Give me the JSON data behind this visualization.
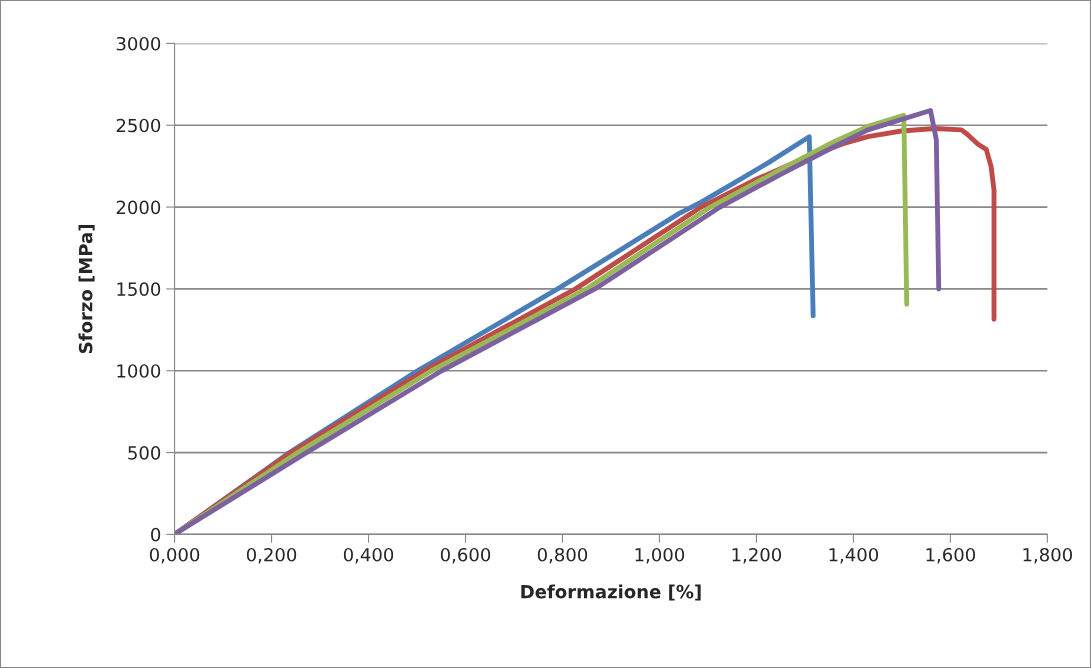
{
  "chart_data": {
    "type": "line",
    "xlabel": "Deformazione [%]",
    "ylabel": "Sforzo [MPa]",
    "xlim": [
      0,
      1.8
    ],
    "ylim": [
      0,
      3000
    ],
    "xticks": [
      {
        "value": 0,
        "label": "0,000"
      },
      {
        "value": 0.2,
        "label": "0,200"
      },
      {
        "value": 0.4,
        "label": "0,400"
      },
      {
        "value": 0.6,
        "label": "0,600"
      },
      {
        "value": 0.8,
        "label": "0,800"
      },
      {
        "value": 1.0,
        "label": "1,000"
      },
      {
        "value": 1.2,
        "label": "1,200"
      },
      {
        "value": 1.4,
        "label": "1,400"
      },
      {
        "value": 1.6,
        "label": "1,600"
      },
      {
        "value": 1.8,
        "label": "1,800"
      }
    ],
    "yticks": [
      0,
      500,
      1000,
      1500,
      2000,
      2500,
      3000
    ],
    "grid": "y",
    "legend": false,
    "marker": "none",
    "line_style": "solid",
    "series": [
      {
        "color": "#4a7ebb",
        "x": [
          0.005,
          0.237,
          0.501,
          0.79,
          1.04,
          1.086,
          1.155,
          1.224,
          1.309,
          1.317
        ],
        "values": [
          10,
          500,
          1000,
          1500,
          1960,
          2030,
          2150,
          2270,
          2430,
          1335
        ]
      },
      {
        "color": "#be4b48",
        "x": [
          0.005,
          0.24,
          0.515,
          0.827,
          1.086,
          1.2,
          1.3,
          1.382,
          1.43,
          1.499,
          1.568,
          1.623,
          1.636,
          1.657,
          1.674,
          1.684,
          1.69,
          1.69
        ],
        "values": [
          10,
          500,
          1000,
          1500,
          2000,
          2170,
          2300,
          2390,
          2431,
          2465,
          2480,
          2472,
          2442,
          2384,
          2353,
          2247,
          2103,
          1314
        ]
      },
      {
        "color": "#98b954",
        "x": [
          0.005,
          0.254,
          0.53,
          0.849,
          1.105,
          1.25,
          1.361,
          1.43,
          1.504,
          1.51
        ],
        "values": [
          10,
          500,
          1000,
          1500,
          2000,
          2230,
          2401,
          2493,
          2560,
          1406
        ]
      },
      {
        "color": "#7d60a0",
        "x": [
          0.005,
          0.272,
          0.551,
          0.867,
          1.125,
          1.25,
          1.361,
          1.43,
          1.559,
          1.571,
          1.576
        ],
        "values": [
          10,
          500,
          1000,
          1500,
          2000,
          2200,
          2370,
          2472,
          2590,
          2411,
          1499
        ]
      }
    ]
  }
}
